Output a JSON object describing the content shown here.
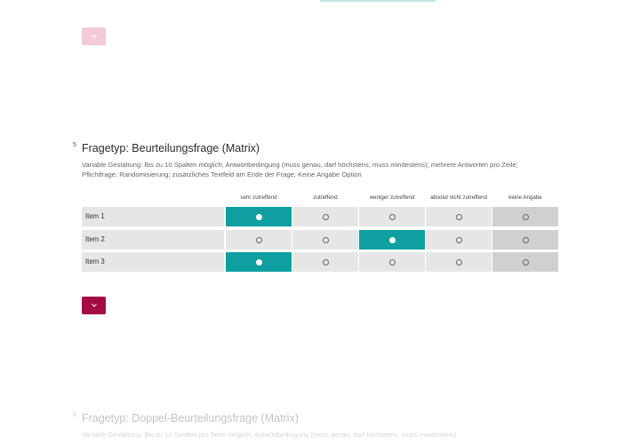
{
  "colors": {
    "accent_teal": "#0f9fa0",
    "toggle_active": "#a30b45",
    "toggle_faded": "#f3cad7",
    "row_bg": "#e6e6e6",
    "na_bg": "#d0d0d0"
  },
  "icons": {
    "toggle": "chevron-down-icon",
    "radio": "radio-icon"
  },
  "question5": {
    "number": "5",
    "title": "Fragetyp: Beurteilungsfrage (Matrix)",
    "description": "Variable Gestaltung: Bis zu 10 Spalten möglich; Antwortbedingung (muss genau, darf höchstens, muss mindestens); mehrere Antworten pro Zeile; Pflichtfrage; Randomisierung; zusätzliches Textfeld am Ende der Frage; Keine Angabe Option",
    "columns": [
      "sehr zutreffend",
      "zutreffend",
      "weniger zutreffend",
      "absolut nicht zutreffend",
      "keine Angabe"
    ],
    "rows": [
      {
        "label": "Item 1",
        "selected": 0
      },
      {
        "label": "Item 2",
        "selected": 2
      },
      {
        "label": "Item 3",
        "selected": 0
      }
    ]
  },
  "question6": {
    "number": "6",
    "title": "Fragetyp: Doppel-Beurteilungsfrage (Matrix)",
    "description": "Variable Gestaltung: Bis zu 10 Spalten pro Seite möglich; Antwortbedingung (muss genau, darf höchstens, muss mindestens)"
  }
}
